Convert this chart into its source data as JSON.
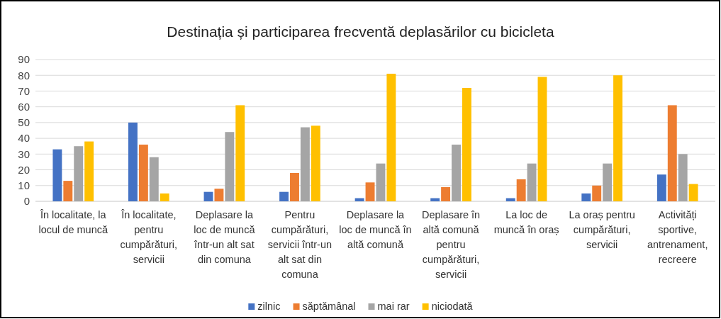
{
  "chart_data": {
    "type": "bar",
    "title": "Destinația și participarea frecventă deplasărilor cu bicicleta",
    "categories": [
      "În localitate, la locul de muncă",
      "În localitate, pentru cumpărături, servicii",
      "Deplasare la loc de muncă într-un alt sat din comuna",
      "Pentru cumpărături, servicii într-un alt sat din comuna",
      "Deplasare la loc de muncă în altă comună",
      "Deplasare în altă comună pentru cumpărături, servicii",
      "La loc de muncă în oraș",
      "La oraș pentru cumpărături, servicii",
      "Activități sportive, antrenament, recreere"
    ],
    "series": [
      {
        "name": "zilnic",
        "color": "#4472c4",
        "values": [
          33,
          50,
          6,
          6,
          2,
          2,
          2,
          5,
          17
        ]
      },
      {
        "name": "săptămânal",
        "color": "#ed7d31",
        "values": [
          13,
          36,
          8,
          18,
          12,
          9,
          14,
          10,
          61
        ]
      },
      {
        "name": "mai rar",
        "color": "#a5a5a5",
        "values": [
          35,
          28,
          44,
          47,
          24,
          36,
          24,
          24,
          30
        ]
      },
      {
        "name": "niciodată",
        "color": "#ffc000",
        "values": [
          38,
          5,
          61,
          48,
          81,
          72,
          79,
          80,
          11
        ]
      }
    ],
    "ylim": [
      0,
      90
    ],
    "yticks": [
      0,
      10,
      20,
      30,
      40,
      50,
      60,
      70,
      80,
      90
    ],
    "grid": "y",
    "legend": "bottom"
  }
}
